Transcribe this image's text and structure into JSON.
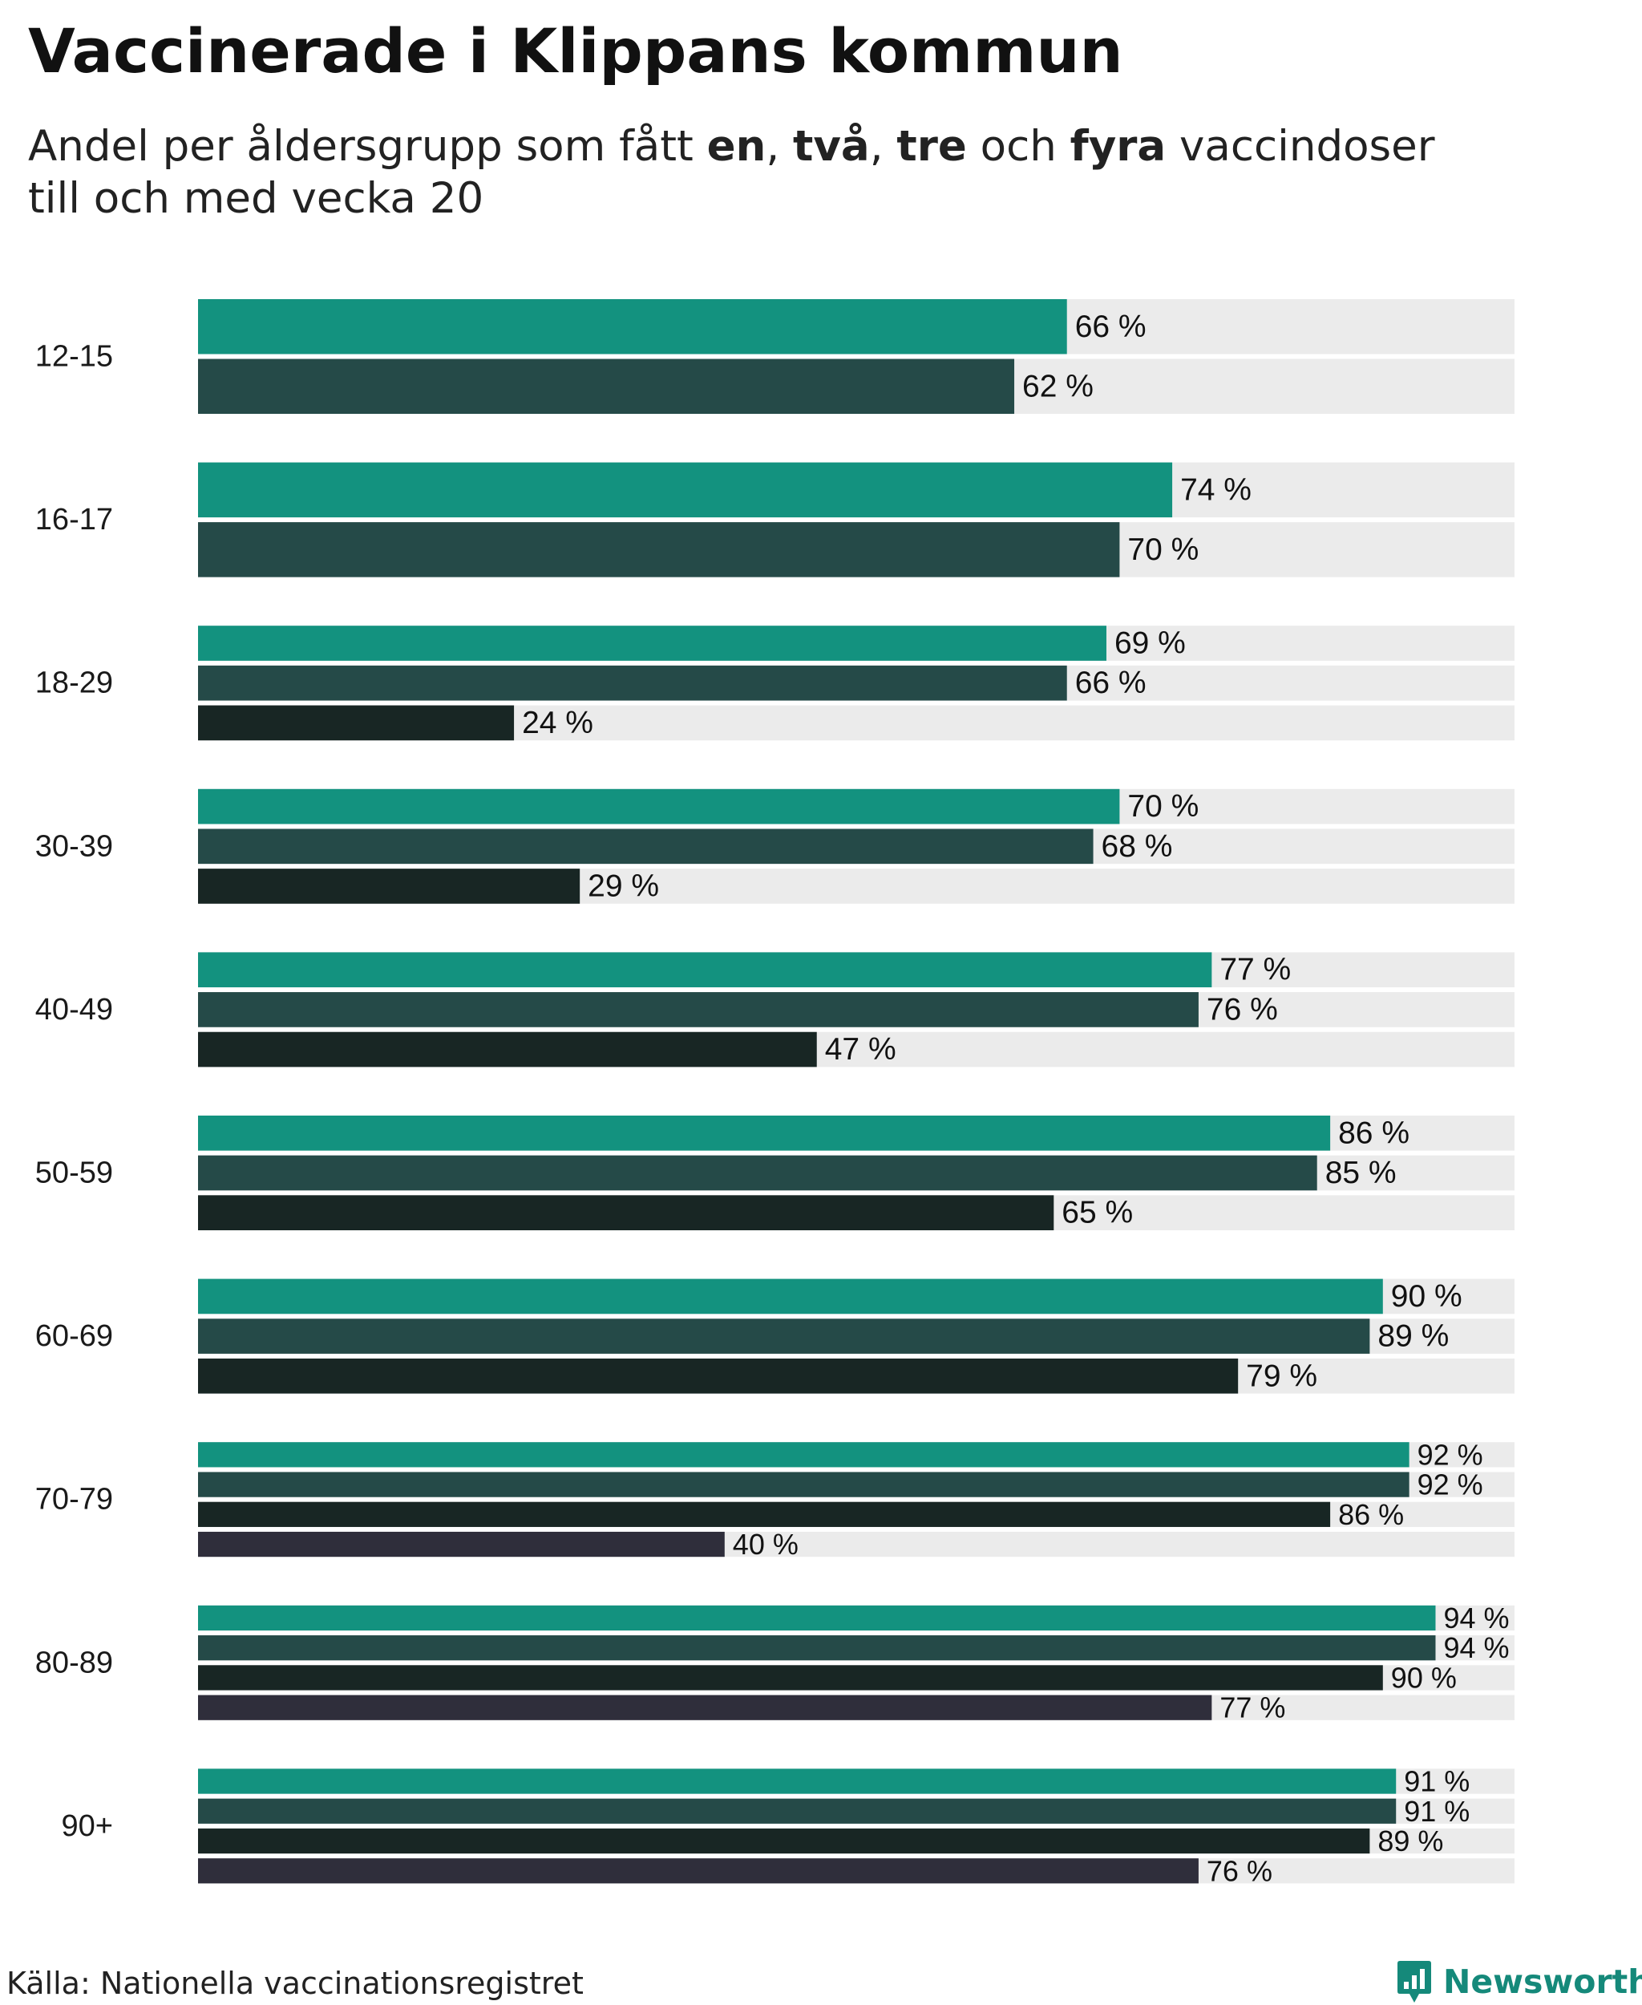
{
  "title": "Vaccinerade i Klippans kommun",
  "subtitle": {
    "prefix": "Andel per åldersgrupp som fått ",
    "dose1": "en",
    "sep1": ", ",
    "dose2": "två",
    "sep2": ", ",
    "dose3": "tre",
    "mid": " och ",
    "dose4": "fyra",
    "suffix": " vaccindoser",
    "line2": "till och med vecka 20"
  },
  "source": "Källa: Nationella vaccinationsregistret",
  "brand": {
    "name": "Newsworthy",
    "icon": "newsworthy-logo-icon",
    "color": "#15897a"
  },
  "colors": {
    "dose1": "#13927f",
    "dose2": "#254a48",
    "dose3": "#182624",
    "dose4": "#2f2e3b",
    "track": "#ebebeb"
  },
  "chart_data": {
    "type": "bar",
    "orientation": "horizontal",
    "value_suffix": " %",
    "xlim": [
      0,
      100
    ],
    "grid": false,
    "legend": "in subtitle",
    "categories": [
      "12-15",
      "16-17",
      "18-29",
      "30-39",
      "40-49",
      "50-59",
      "60-69",
      "70-79",
      "80-89",
      "90+"
    ],
    "series": [
      {
        "name": "en",
        "color": "#13927f",
        "values": [
          66,
          74,
          69,
          70,
          77,
          86,
          90,
          92,
          94,
          91
        ]
      },
      {
        "name": "två",
        "color": "#254a48",
        "values": [
          62,
          70,
          66,
          68,
          76,
          85,
          89,
          92,
          94,
          91
        ]
      },
      {
        "name": "tre",
        "color": "#182624",
        "values": [
          null,
          null,
          24,
          29,
          47,
          65,
          79,
          86,
          90,
          89
        ]
      },
      {
        "name": "fyra",
        "color": "#2f2e3b",
        "values": [
          null,
          null,
          null,
          null,
          null,
          null,
          null,
          40,
          77,
          76
        ]
      }
    ]
  }
}
